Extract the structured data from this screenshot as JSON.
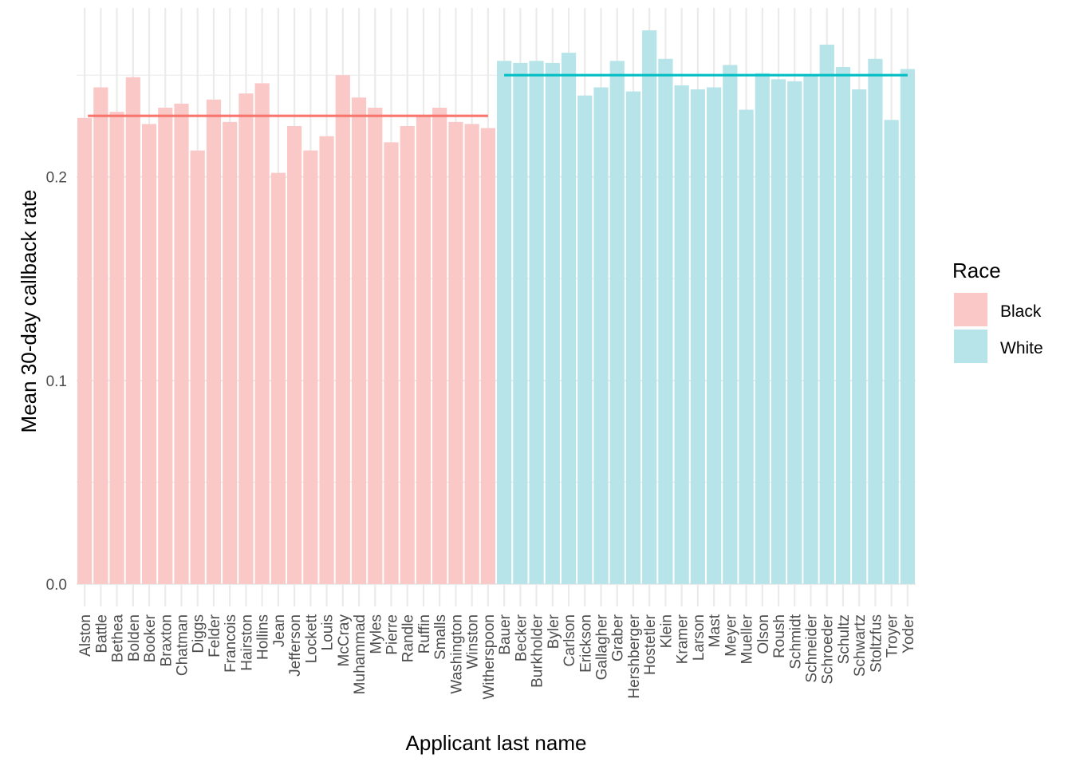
{
  "chart_data": {
    "type": "bar",
    "title": "",
    "xlabel": "Applicant last name",
    "ylabel": "Mean 30-day callback rate",
    "ylim": [
      -0.011,
      0.283
    ],
    "yticks": [
      0.0,
      0.1,
      0.2
    ],
    "ytick_labels": [
      "0.0",
      "0.1",
      "0.2"
    ],
    "grid": true,
    "legend": {
      "title": "Race",
      "position": "right"
    },
    "series": [
      {
        "name": "Black",
        "color": "#F8766D",
        "fill": "#FBC8C8",
        "mean": 0.23,
        "categories": [
          "Alston",
          "Battle",
          "Bethea",
          "Bolden",
          "Booker",
          "Braxton",
          "Chatman",
          "Diggs",
          "Felder",
          "Francois",
          "Hairston",
          "Hollins",
          "Jean",
          "Jefferson",
          "Lockett",
          "Louis",
          "McCray",
          "Muhammad",
          "Myles",
          "Pierre",
          "Randle",
          "Ruffin",
          "Smalls",
          "Washington",
          "Winston",
          "Witherspoon"
        ],
        "values": [
          0.229,
          0.244,
          0.232,
          0.249,
          0.226,
          0.234,
          0.236,
          0.213,
          0.238,
          0.227,
          0.241,
          0.246,
          0.202,
          0.225,
          0.213,
          0.22,
          0.25,
          0.239,
          0.234,
          0.217,
          0.225,
          0.23,
          0.234,
          0.227,
          0.226,
          0.224
        ]
      },
      {
        "name": "White",
        "color": "#00BFC4",
        "fill": "#B7E4E8",
        "mean": 0.25,
        "categories": [
          "Bauer",
          "Becker",
          "Burkholder",
          "Byler",
          "Carlson",
          "Erickson",
          "Gallagher",
          "Graber",
          "Hershberger",
          "Hostetler",
          "Klein",
          "Kramer",
          "Larson",
          "Mast",
          "Meyer",
          "Mueller",
          "Olson",
          "Roush",
          "Schmidt",
          "Schneider",
          "Schroeder",
          "Schultz",
          "Schwartz",
          "Stoltzfus",
          "Troyer",
          "Yoder"
        ],
        "values": [
          0.257,
          0.256,
          0.257,
          0.256,
          0.261,
          0.24,
          0.244,
          0.257,
          0.242,
          0.272,
          0.258,
          0.245,
          0.243,
          0.244,
          0.255,
          0.233,
          0.251,
          0.248,
          0.247,
          0.25,
          0.265,
          0.254,
          0.243,
          0.258,
          0.228,
          0.253
        ]
      }
    ]
  }
}
